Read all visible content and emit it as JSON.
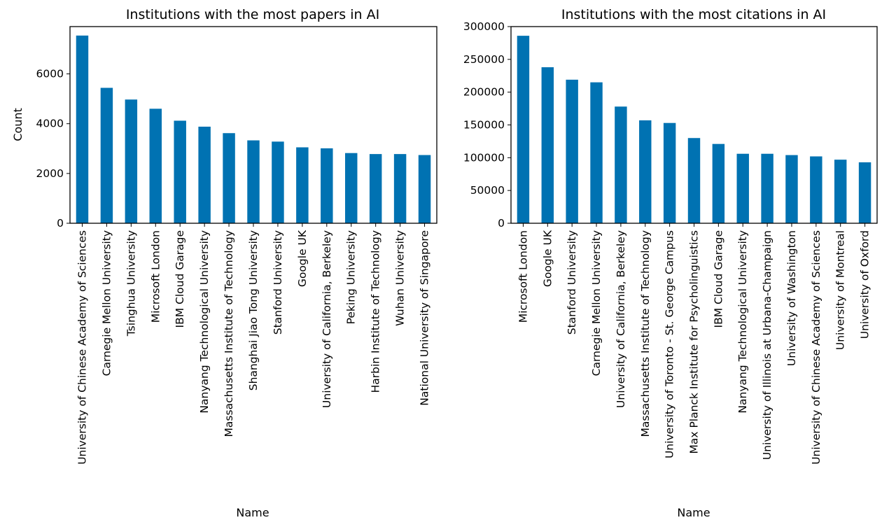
{
  "chart_data": [
    {
      "type": "bar",
      "title": "Institutions with the most papers in AI",
      "xlabel": "Name",
      "ylabel": "Count",
      "ylim": [
        0,
        7900
      ],
      "yticks": [
        0,
        2000,
        4000,
        6000
      ],
      "ytick_labels": [
        "0",
        "2000",
        "4000",
        "6000"
      ],
      "grid": false,
      "bar_color": "#0072b2",
      "categories": [
        "University of Chinese Academy of Sciences",
        "Carnegie Mellon University",
        "Tsinghua University",
        "Microsoft London",
        "IBM Cloud Garage",
        "Nanyang Technological University",
        "Massachusetts Institute of Technology",
        "Shanghai Jiao Tong University",
        "Stanford University",
        "Google UK",
        "University of California, Berkeley",
        "Peking University",
        "Harbin Institute of Technology",
        "Wuhan University",
        "National University of Singapore"
      ],
      "values": [
        7540,
        5440,
        4970,
        4600,
        4120,
        3880,
        3620,
        3330,
        3280,
        3050,
        3010,
        2820,
        2780,
        2780,
        2740
      ]
    },
    {
      "type": "bar",
      "title": "Institutions with the most citations in AI",
      "xlabel": "Name",
      "ylabel": "",
      "ylim": [
        0,
        300000
      ],
      "yticks": [
        0,
        50000,
        100000,
        150000,
        200000,
        250000,
        300000
      ],
      "ytick_labels": [
        "0",
        "50000",
        "100000",
        "150000",
        "200000",
        "250000",
        "300000"
      ],
      "grid": false,
      "bar_color": "#0072b2",
      "categories": [
        "Microsoft London",
        "Google UK",
        "Stanford University",
        "Carnegie Mellon University",
        "University of California, Berkeley",
        "Massachusetts Institute of Technology",
        "University of Toronto - St. George Campus",
        "Max Planck Institute for Psycholinguistics",
        "IBM Cloud Garage",
        "Nanyang Technological University",
        "University of Illinois at Urbana-Champaign",
        "University of Washington",
        "University of Chinese Academy of Sciences",
        "University of Montreal",
        "University of Oxford"
      ],
      "values": [
        286000,
        238000,
        219000,
        215000,
        178000,
        157000,
        153000,
        130000,
        121000,
        106000,
        106000,
        104000,
        102000,
        97000,
        93000
      ]
    }
  ]
}
